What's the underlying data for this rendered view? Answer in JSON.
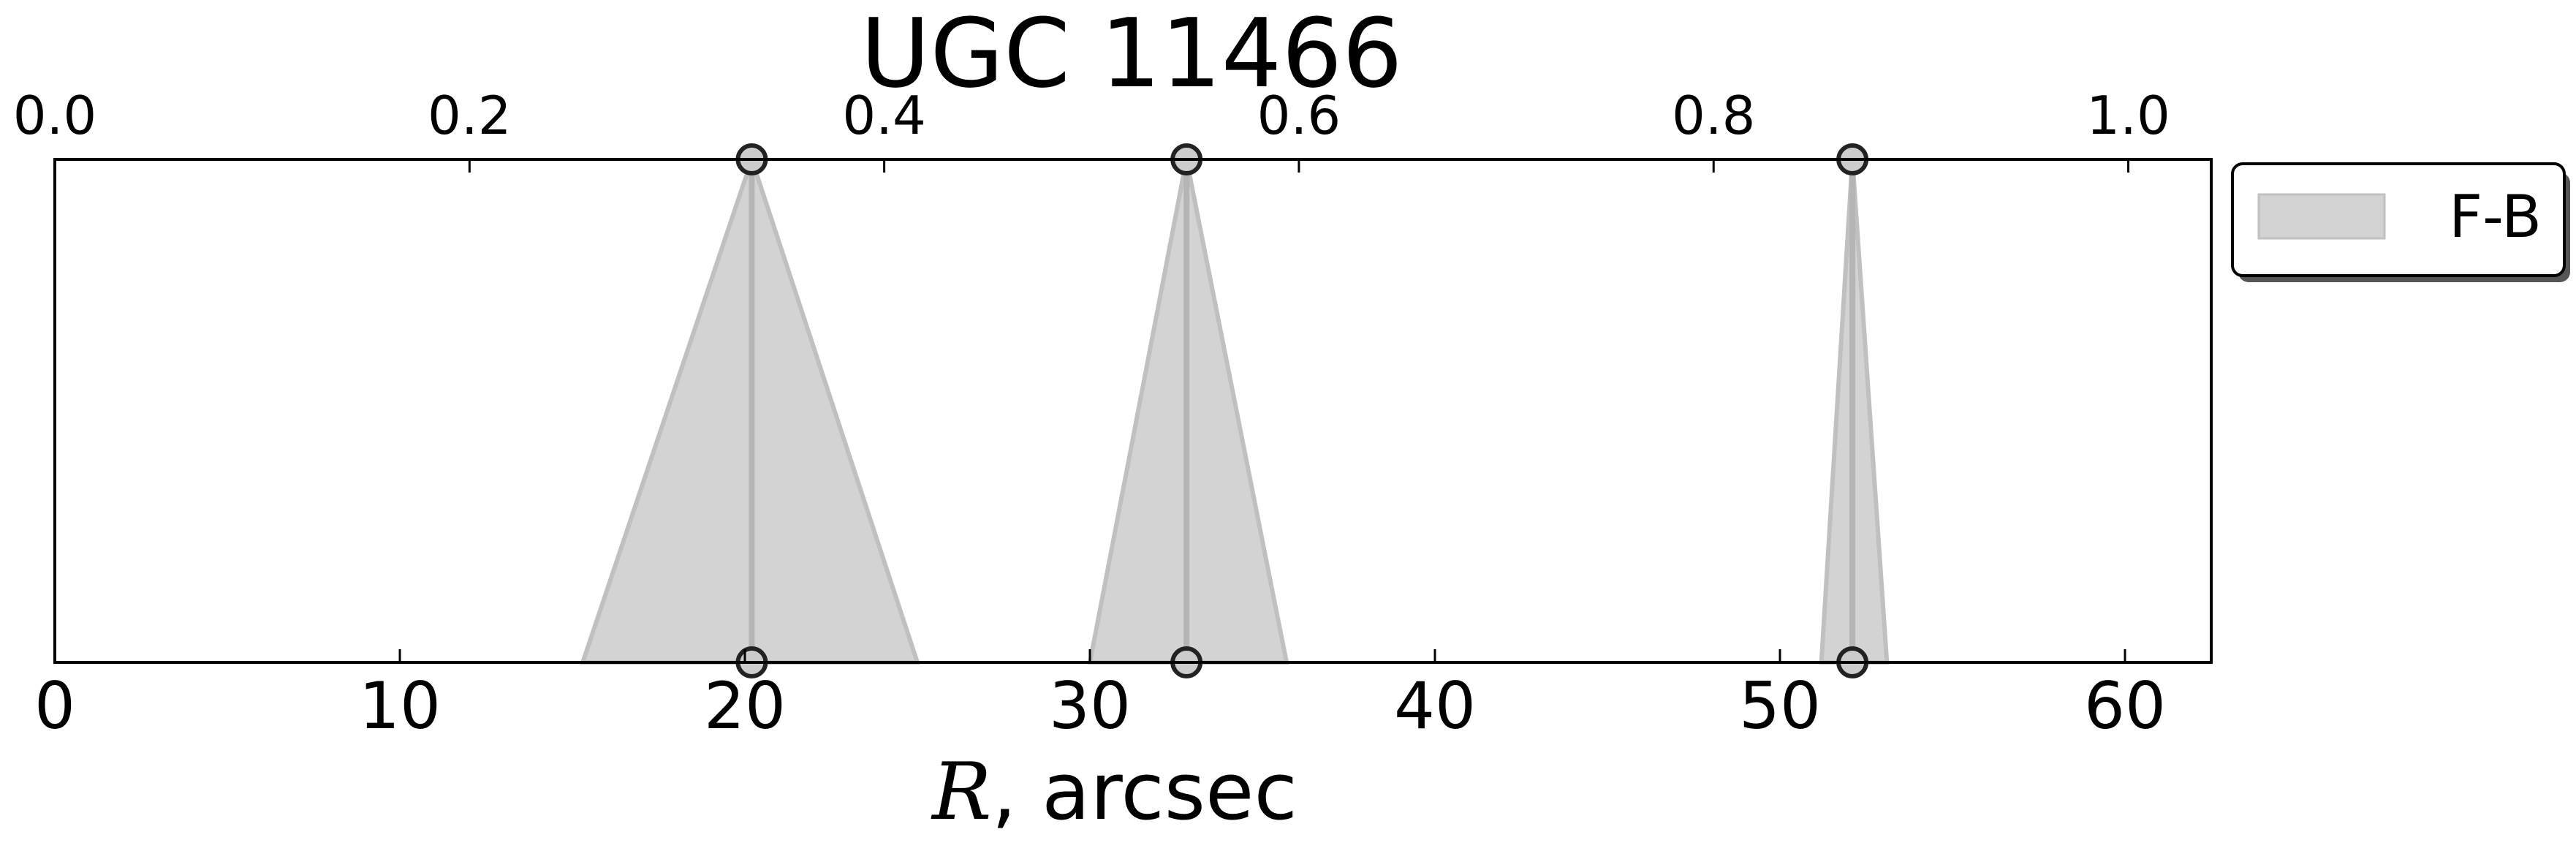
{
  "chart_data": {
    "type": "area",
    "title": "UGC 11466",
    "xlabel_var": "R",
    "xlabel_rest": ", arcsec",
    "xlim": [
      0,
      62.5
    ],
    "top_xlim": [
      0,
      1.04
    ],
    "bottom_ticks": [
      0,
      10,
      20,
      30,
      40,
      50,
      60
    ],
    "bottom_tick_labels": [
      "0",
      "10",
      "20",
      "30",
      "40",
      "50",
      "60"
    ],
    "top_ticks": [
      0.0,
      0.2,
      0.4,
      0.6,
      0.8,
      1.0
    ],
    "top_tick_labels": [
      "0.0",
      "0.2",
      "0.4",
      "0.6",
      "0.8",
      "1.0"
    ],
    "legend": {
      "position": "outside-upper-right",
      "entries": [
        "F-B"
      ]
    },
    "series": [
      {
        "name": "F-B",
        "color": "#d3d3d3",
        "edge_color": "#c0c0c0",
        "regions": [
          {
            "center": 20.2,
            "left": 15.3,
            "right": 25.0
          },
          {
            "center": 32.8,
            "left": 30.0,
            "right": 35.7
          },
          {
            "center": 52.1,
            "left": 51.2,
            "right": 53.1
          }
        ]
      }
    ]
  }
}
